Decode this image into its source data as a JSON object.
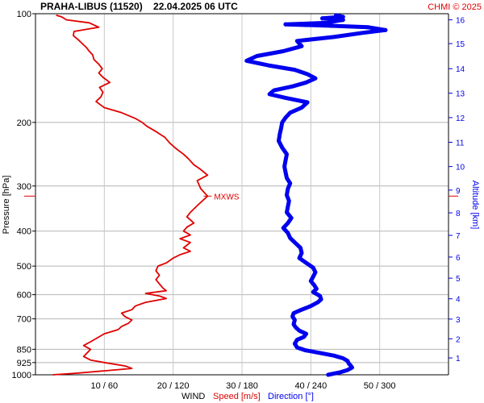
{
  "chart_data": {
    "type": "line",
    "title": "PRAHA-LIBUS (11520)    22.04.2025 06 UTC",
    "credit": "CHMI © 2025",
    "y_axis": {
      "label": "Pressure [hPa]",
      "scale": "log",
      "range": [
        1000,
        100
      ],
      "ticks": [
        100,
        200,
        300,
        400,
        500,
        600,
        700,
        850,
        925,
        1000
      ],
      "tick_labels": [
        "100",
        "200",
        "300",
        "400",
        "500",
        "600",
        "700",
        "850",
        "925",
        "1000"
      ]
    },
    "y2_axis": {
      "label": "Altitude [km]",
      "ticks": [
        {
          "label": "1",
          "p": 898
        },
        {
          "label": "2",
          "p": 795
        },
        {
          "label": "3",
          "p": 701
        },
        {
          "label": "4",
          "p": 616
        },
        {
          "label": "5",
          "p": 540
        },
        {
          "label": "6",
          "p": 472
        },
        {
          "label": "7",
          "p": 411
        },
        {
          "label": "8",
          "p": 356
        },
        {
          "label": "9",
          "p": 308
        },
        {
          "label": "10",
          "p": 265
        },
        {
          "label": "11",
          "p": 227
        },
        {
          "label": "12",
          "p": 194
        },
        {
          "label": "13",
          "p": 166
        },
        {
          "label": "14",
          "p": 142
        },
        {
          "label": "15",
          "p": 121
        },
        {
          "label": "16",
          "p": 104
        }
      ]
    },
    "x_axis": {
      "speed_range": [
        0,
        60
      ],
      "direction_range": [
        0,
        360
      ],
      "tick_labels": [
        "10 / 60",
        "20 / 120",
        "30 / 180",
        "40 / 240",
        "50 / 300"
      ],
      "legend": {
        "wind": "WIND",
        "speed": "Speed [m/s]",
        "direction": "Direction [°]"
      }
    },
    "max_wind_marker": {
      "label": "MXWS",
      "pressure": 320
    },
    "series": [
      {
        "name": "Speed [m/s]",
        "color": "#e00000",
        "points": [
          [
            1000,
            2.5
          ],
          [
            990,
            6
          ],
          [
            975,
            10
          ],
          [
            960,
            14
          ],
          [
            945,
            13
          ],
          [
            925,
            10
          ],
          [
            910,
            8
          ],
          [
            890,
            7
          ],
          [
            870,
            7.5
          ],
          [
            850,
            8
          ],
          [
            830,
            7
          ],
          [
            810,
            8
          ],
          [
            790,
            9
          ],
          [
            770,
            10
          ],
          [
            750,
            12
          ],
          [
            735,
            12.5
          ],
          [
            720,
            13.5
          ],
          [
            705,
            14
          ],
          [
            690,
            13
          ],
          [
            675,
            12.5
          ],
          [
            660,
            14
          ],
          [
            645,
            14.5
          ],
          [
            630,
            16
          ],
          [
            615,
            19
          ],
          [
            605,
            18
          ],
          [
            595,
            16
          ],
          [
            585,
            19
          ],
          [
            575,
            18.5
          ],
          [
            560,
            18
          ],
          [
            545,
            17.5
          ],
          [
            530,
            18
          ],
          [
            515,
            17.5
          ],
          [
            500,
            17.8
          ],
          [
            490,
            19
          ],
          [
            475,
            20
          ],
          [
            465,
            21
          ],
          [
            455,
            22.5
          ],
          [
            445,
            21.5
          ],
          [
            430,
            22.5
          ],
          [
            420,
            21
          ],
          [
            410,
            22.5
          ],
          [
            400,
            21.5
          ],
          [
            390,
            22
          ],
          [
            380,
            23
          ],
          [
            365,
            22
          ],
          [
            355,
            22.5
          ],
          [
            340,
            23.5
          ],
          [
            320,
            25
          ],
          [
            305,
            24
          ],
          [
            290,
            23.5
          ],
          [
            280,
            25
          ],
          [
            270,
            24
          ],
          [
            262,
            23
          ],
          [
            252,
            22.2
          ],
          [
            245,
            21.5
          ],
          [
            237,
            20.5
          ],
          [
            228,
            19.5
          ],
          [
            220,
            18.8
          ],
          [
            212,
            17.5
          ],
          [
            205,
            16.2
          ],
          [
            200,
            15.5
          ],
          [
            195,
            14.5
          ],
          [
            188,
            12.5
          ],
          [
            182,
            10
          ],
          [
            178,
            9.3
          ],
          [
            175,
            8.8
          ],
          [
            170,
            9.5
          ],
          [
            165,
            9.8
          ],
          [
            160,
            9.3
          ],
          [
            155,
            10.8
          ],
          [
            150,
            9.8
          ],
          [
            146,
            9.2
          ],
          [
            142,
            9.7
          ],
          [
            138,
            9.2
          ],
          [
            134,
            8.5
          ],
          [
            130,
            8.3
          ],
          [
            127,
            7.8
          ],
          [
            124,
            7.4
          ],
          [
            121,
            6.8
          ],
          [
            118,
            6.2
          ],
          [
            115,
            5.5
          ],
          [
            112,
            5.6
          ],
          [
            109,
            9.2
          ],
          [
            106,
            7.8
          ],
          [
            104,
            4.5
          ],
          [
            102,
            3.8
          ],
          [
            101,
            3
          ]
        ]
      },
      {
        "name": "Direction [°]",
        "color": "#0000ee",
        "points": [
          [
            1000,
            255
          ],
          [
            985,
            265
          ],
          [
            970,
            272
          ],
          [
            955,
            276
          ],
          [
            945,
            275
          ],
          [
            930,
            273
          ],
          [
            915,
            272
          ],
          [
            900,
            268
          ],
          [
            885,
            260
          ],
          [
            870,
            248
          ],
          [
            855,
            235
          ],
          [
            840,
            228
          ],
          [
            820,
            226
          ],
          [
            800,
            228
          ],
          [
            785,
            234
          ],
          [
            770,
            236
          ],
          [
            755,
            230
          ],
          [
            740,
            227
          ],
          [
            725,
            225
          ],
          [
            705,
            226
          ],
          [
            690,
            224
          ],
          [
            675,
            225
          ],
          [
            660,
            232
          ],
          [
            645,
            240
          ],
          [
            630,
            246
          ],
          [
            618,
            249
          ],
          [
            605,
            248
          ],
          [
            590,
            242
          ],
          [
            578,
            245
          ],
          [
            565,
            243
          ],
          [
            550,
            240
          ],
          [
            535,
            242
          ],
          [
            520,
            244
          ],
          [
            505,
            242
          ],
          [
            490,
            236
          ],
          [
            475,
            230
          ],
          [
            460,
            232
          ],
          [
            445,
            231
          ],
          [
            430,
            226
          ],
          [
            418,
            222
          ],
          [
            405,
            220
          ],
          [
            392,
            216
          ],
          [
            380,
            220
          ],
          [
            368,
            223
          ],
          [
            355,
            219
          ],
          [
            342,
            220
          ],
          [
            330,
            221
          ],
          [
            318,
            219
          ],
          [
            305,
            220
          ],
          [
            295,
            222
          ],
          [
            285,
            219
          ],
          [
            275,
            218
          ],
          [
            265,
            217
          ],
          [
            255,
            218
          ],
          [
            245,
            219
          ],
          [
            235,
            215
          ],
          [
            225,
            212
          ],
          [
            215,
            213
          ],
          [
            208,
            214
          ],
          [
            200,
            215
          ],
          [
            194,
            218
          ],
          [
            188,
            222
          ],
          [
            182,
            232
          ],
          [
            176,
            237
          ],
          [
            171,
            218
          ],
          [
            167,
            204
          ],
          [
            163,
            208
          ],
          [
            159,
            224
          ],
          [
            155,
            236
          ],
          [
            151,
            244
          ],
          [
            147,
            237
          ],
          [
            143,
            226
          ],
          [
            139,
            203
          ],
          [
            135,
            184
          ],
          [
            131,
            193
          ],
          [
            127,
            216
          ],
          [
            123,
            232
          ],
          [
            119,
            228
          ],
          [
            116,
            260
          ],
          [
            113,
            285
          ],
          [
            111,
            305
          ],
          [
            109,
            290
          ],
          [
            108,
            258
          ],
          [
            107,
            218
          ],
          [
            106,
            255
          ],
          [
            105,
            260
          ],
          [
            104,
            268
          ],
          [
            103,
            250
          ],
          [
            102,
            268
          ],
          [
            101,
            262
          ]
        ]
      }
    ]
  }
}
